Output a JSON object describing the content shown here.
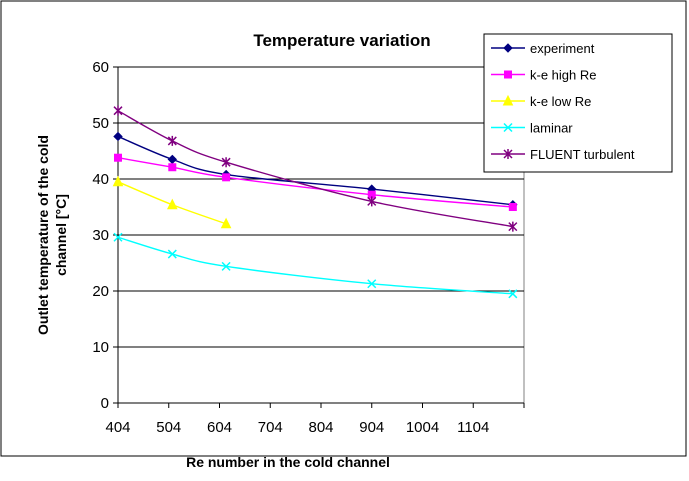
{
  "chart_data": {
    "type": "line",
    "title": "Temperature variation",
    "xlabel": "Re number in the cold channel",
    "ylabel": "Outlet temperature of the cold channel [°C]",
    "ylabel_lines": [
      "Outlet temperature of the cold",
      "channel [°C]"
    ],
    "xlim": [
      404,
      1204
    ],
    "ylim": [
      0,
      60
    ],
    "x_ticks": [
      404,
      504,
      604,
      704,
      804,
      904,
      1004,
      1104
    ],
    "y_ticks": [
      0,
      10,
      20,
      30,
      40,
      50,
      60
    ],
    "grid": "horizontal",
    "legend_position": "top-right",
    "series": [
      {
        "name": "experiment",
        "color": "#000080",
        "marker": "diamond",
        "points": [
          [
            404,
            47.6
          ],
          [
            511,
            43.5
          ],
          [
            617,
            40.8
          ],
          [
            904,
            38.2
          ],
          [
            1182,
            35.4
          ]
        ]
      },
      {
        "name": "k-e high Re",
        "color": "#ff00ff",
        "marker": "square",
        "points": [
          [
            404,
            43.8
          ],
          [
            511,
            42.1
          ],
          [
            617,
            40.3
          ],
          [
            904,
            37.2
          ],
          [
            1182,
            35.0
          ]
        ]
      },
      {
        "name": "k-e low Re",
        "color": "#ffff00",
        "marker": "triangle",
        "points": [
          [
            404,
            39.5
          ],
          [
            511,
            35.4
          ],
          [
            617,
            32.0
          ]
        ]
      },
      {
        "name": "laminar",
        "color": "#00ffff",
        "marker": "x",
        "points": [
          [
            404,
            29.6
          ],
          [
            511,
            26.6
          ],
          [
            617,
            24.4
          ],
          [
            904,
            21.3
          ],
          [
            1182,
            19.5
          ]
        ]
      },
      {
        "name": "FLUENT turbulent",
        "color": "#800080",
        "marker": "asterisk",
        "points": [
          [
            404,
            52.2
          ],
          [
            511,
            46.8
          ],
          [
            617,
            43.0
          ],
          [
            904,
            36.0
          ],
          [
            1182,
            31.5
          ]
        ]
      }
    ]
  }
}
